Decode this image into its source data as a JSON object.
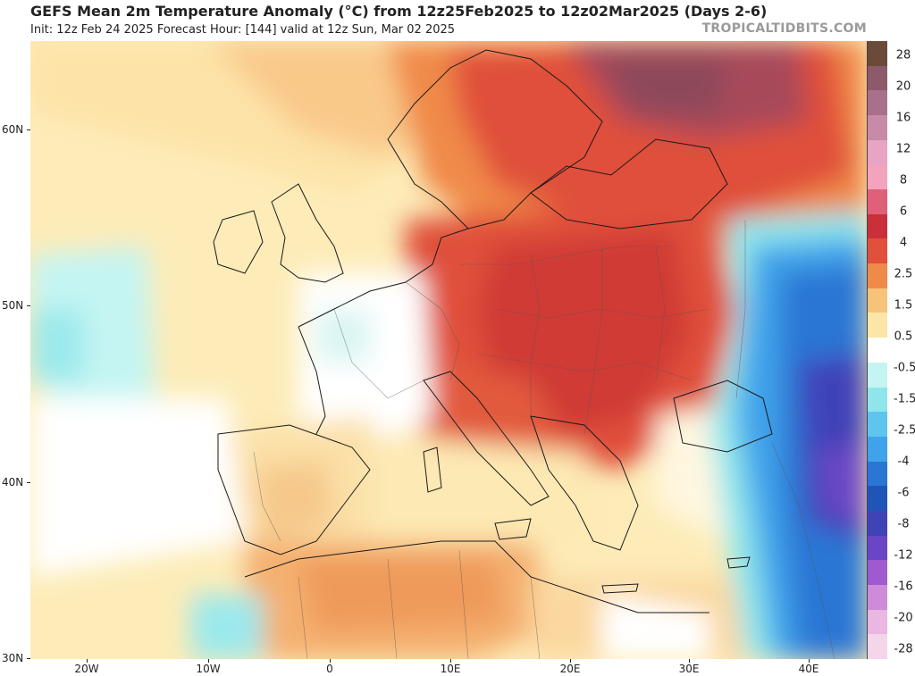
{
  "header": {
    "title": "GEFS Mean 2m Temperature Anomaly (°C) from 12z25Feb2025 to 12z02Mar2025 (Days 2-6)",
    "subtitle": "Init: 12z Feb 24 2025   Forecast Hour: [144]   valid at 12z Sun, Mar 02 2025",
    "brand": "TROPICALTIDBITS.COM"
  },
  "axes": {
    "x_labels": [
      "20W",
      "10W",
      "0",
      "10E",
      "20E",
      "30E",
      "40E"
    ],
    "y_labels": [
      "60N",
      "50N",
      "40N",
      "30N"
    ]
  },
  "colorbar": {
    "labels": [
      "28",
      "20",
      "16",
      "12",
      "8",
      "6",
      "4",
      "2.5",
      "1.5",
      "0.5",
      "-0.5",
      "-1.5",
      "-2.5",
      "-4",
      "-6",
      "-8",
      "-12",
      "-16",
      "-20",
      "-28"
    ],
    "colors": [
      "#6b4a3a",
      "#8c5a6a",
      "#a8708a",
      "#c98aaa",
      "#e7a4c4",
      "#f3a3bd",
      "#e0607a",
      "#c9303a",
      "#e0503a",
      "#f08a4a",
      "#f7c27a",
      "#fbe6a8",
      "#ffffff",
      "#c4f5f3",
      "#8ee6ec",
      "#5ec5ee",
      "#3fa2ea",
      "#2a76d4",
      "#1f55b8",
      "#3f43b8",
      "#6a46c6",
      "#a05ad0",
      "#cf8bd9",
      "#e9b7e2",
      "#f4d5ea"
    ]
  },
  "map": {
    "region": "Europe",
    "variable": "2m Temperature Anomaly",
    "units": "°C"
  }
}
